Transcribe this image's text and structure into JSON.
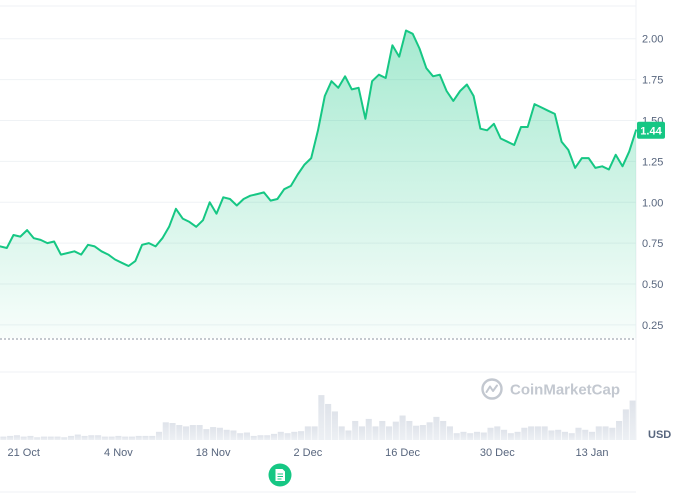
{
  "chart_data": {
    "type": "area",
    "currency": "USD",
    "watermark": "CoinMarketCap",
    "current_price_label": "1.44",
    "accent_color": "#16c784",
    "ylim": [
      0.17,
      2.2
    ],
    "y_ticks": [
      {
        "value": 0.25,
        "label": "0.25"
      },
      {
        "value": 0.5,
        "label": "0.50"
      },
      {
        "value": 0.75,
        "label": "0.75"
      },
      {
        "value": 1.0,
        "label": "1.00"
      },
      {
        "value": 1.25,
        "label": "1.25"
      },
      {
        "value": 1.5,
        "label": "1.50"
      },
      {
        "value": 1.75,
        "label": "1.75"
      },
      {
        "value": 2.0,
        "label": "2.00"
      }
    ],
    "x_ticks": [
      {
        "day": 3,
        "label": "21 Oct"
      },
      {
        "day": 17,
        "label": "4 Nov"
      },
      {
        "day": 31,
        "label": "18 Nov"
      },
      {
        "day": 45,
        "label": "2 Dec"
      },
      {
        "day": 59,
        "label": "16 Dec"
      },
      {
        "day": 73,
        "label": "30 Dec"
      },
      {
        "day": 87,
        "label": "13 Jan"
      }
    ],
    "grid": true,
    "price_series": [
      [
        -0.5,
        0.73
      ],
      [
        0.5,
        0.72
      ],
      [
        1.5,
        0.8
      ],
      [
        2.5,
        0.79
      ],
      [
        3.5,
        0.83
      ],
      [
        4.5,
        0.78
      ],
      [
        5.5,
        0.77
      ],
      [
        6.5,
        0.75
      ],
      [
        7.5,
        0.76
      ],
      [
        8.5,
        0.68
      ],
      [
        9.5,
        0.69
      ],
      [
        10.5,
        0.7
      ],
      [
        11.5,
        0.68
      ],
      [
        12.5,
        0.74
      ],
      [
        13.5,
        0.73
      ],
      [
        14.5,
        0.7
      ],
      [
        15.5,
        0.68
      ],
      [
        16.5,
        0.65
      ],
      [
        17.5,
        0.63
      ],
      [
        18.5,
        0.61
      ],
      [
        19.5,
        0.64
      ],
      [
        20.5,
        0.74
      ],
      [
        21.5,
        0.75
      ],
      [
        22.5,
        0.73
      ],
      [
        23.5,
        0.78
      ],
      [
        24.5,
        0.85
      ],
      [
        25.5,
        0.96
      ],
      [
        26.5,
        0.9
      ],
      [
        27.5,
        0.88
      ],
      [
        28.5,
        0.85
      ],
      [
        29.5,
        0.89
      ],
      [
        30.5,
        1.0
      ],
      [
        31.5,
        0.93
      ],
      [
        32.5,
        1.03
      ],
      [
        33.5,
        1.02
      ],
      [
        34.5,
        0.98
      ],
      [
        35.5,
        1.02
      ],
      [
        36.5,
        1.04
      ],
      [
        37.5,
        1.05
      ],
      [
        38.5,
        1.06
      ],
      [
        39.5,
        1.01
      ],
      [
        40.5,
        1.02
      ],
      [
        41.5,
        1.08
      ],
      [
        42.5,
        1.1
      ],
      [
        43.5,
        1.17
      ],
      [
        44.5,
        1.23
      ],
      [
        45.5,
        1.27
      ],
      [
        46.5,
        1.44
      ],
      [
        47.5,
        1.65
      ],
      [
        48.5,
        1.74
      ],
      [
        49.5,
        1.7
      ],
      [
        50.5,
        1.77
      ],
      [
        51.5,
        1.69
      ],
      [
        52.5,
        1.7
      ],
      [
        53.5,
        1.51
      ],
      [
        54.5,
        1.74
      ],
      [
        55.5,
        1.78
      ],
      [
        56.5,
        1.76
      ],
      [
        57.5,
        1.96
      ],
      [
        58.5,
        1.89
      ],
      [
        59.5,
        2.05
      ],
      [
        60.5,
        2.03
      ],
      [
        61.5,
        1.94
      ],
      [
        62.5,
        1.82
      ],
      [
        63.5,
        1.77
      ],
      [
        64.5,
        1.78
      ],
      [
        65.5,
        1.68
      ],
      [
        66.5,
        1.62
      ],
      [
        67.5,
        1.68
      ],
      [
        68.5,
        1.72
      ],
      [
        69.5,
        1.65
      ],
      [
        70.5,
        1.45
      ],
      [
        71.5,
        1.44
      ],
      [
        72.5,
        1.48
      ],
      [
        73.5,
        1.39
      ],
      [
        74.5,
        1.37
      ],
      [
        75.5,
        1.35
      ],
      [
        76.5,
        1.46
      ],
      [
        77.5,
        1.46
      ],
      [
        78.5,
        1.6
      ],
      [
        79.5,
        1.58
      ],
      [
        80.5,
        1.56
      ],
      [
        81.5,
        1.54
      ],
      [
        82.5,
        1.37
      ],
      [
        83.5,
        1.32
      ],
      [
        84.5,
        1.21
      ],
      [
        85.5,
        1.27
      ],
      [
        86.5,
        1.27
      ],
      [
        87.5,
        1.21
      ],
      [
        88.5,
        1.22
      ],
      [
        89.5,
        1.2
      ],
      [
        90.5,
        1.29
      ],
      [
        91.5,
        1.22
      ],
      [
        92.5,
        1.31
      ],
      [
        93.5,
        1.44
      ]
    ],
    "volume_series": [
      [
        0,
        0.05
      ],
      [
        1,
        0.06
      ],
      [
        2,
        0.07
      ],
      [
        3,
        0.05
      ],
      [
        4,
        0.06
      ],
      [
        5,
        0.04
      ],
      [
        6,
        0.05
      ],
      [
        7,
        0.05
      ],
      [
        8,
        0.05
      ],
      [
        9,
        0.04
      ],
      [
        10,
        0.06
      ],
      [
        11,
        0.08
      ],
      [
        12,
        0.06
      ],
      [
        13,
        0.07
      ],
      [
        14,
        0.07
      ],
      [
        15,
        0.05
      ],
      [
        16,
        0.05
      ],
      [
        17,
        0.06
      ],
      [
        18,
        0.05
      ],
      [
        19,
        0.05
      ],
      [
        20,
        0.06
      ],
      [
        21,
        0.06
      ],
      [
        22,
        0.06
      ],
      [
        23,
        0.12
      ],
      [
        24,
        0.26
      ],
      [
        25,
        0.25
      ],
      [
        26,
        0.22
      ],
      [
        27,
        0.2
      ],
      [
        28,
        0.22
      ],
      [
        29,
        0.22
      ],
      [
        30,
        0.16
      ],
      [
        31,
        0.19
      ],
      [
        32,
        0.18
      ],
      [
        33,
        0.15
      ],
      [
        34,
        0.14
      ],
      [
        35,
        0.1
      ],
      [
        36,
        0.11
      ],
      [
        37,
        0.06
      ],
      [
        38,
        0.07
      ],
      [
        39,
        0.07
      ],
      [
        40,
        0.09
      ],
      [
        41,
        0.12
      ],
      [
        42,
        0.1
      ],
      [
        43,
        0.12
      ],
      [
        44,
        0.13
      ],
      [
        45,
        0.2
      ],
      [
        46,
        0.2
      ],
      [
        47,
        0.66
      ],
      [
        48,
        0.53
      ],
      [
        49,
        0.42
      ],
      [
        50,
        0.2
      ],
      [
        51,
        0.14
      ],
      [
        52,
        0.28
      ],
      [
        53,
        0.2
      ],
      [
        54,
        0.31
      ],
      [
        55,
        0.2
      ],
      [
        56,
        0.28
      ],
      [
        57,
        0.2
      ],
      [
        58,
        0.27
      ],
      [
        59,
        0.36
      ],
      [
        60,
        0.28
      ],
      [
        61,
        0.21
      ],
      [
        62,
        0.22
      ],
      [
        63,
        0.26
      ],
      [
        64,
        0.34
      ],
      [
        65,
        0.28
      ],
      [
        66,
        0.2
      ],
      [
        67,
        0.1
      ],
      [
        68,
        0.12
      ],
      [
        69,
        0.1
      ],
      [
        70,
        0.12
      ],
      [
        71,
        0.11
      ],
      [
        72,
        0.18
      ],
      [
        73,
        0.2
      ],
      [
        74,
        0.15
      ],
      [
        75,
        0.1
      ],
      [
        76,
        0.12
      ],
      [
        77,
        0.18
      ],
      [
        78,
        0.2
      ],
      [
        79,
        0.2
      ],
      [
        80,
        0.2
      ],
      [
        81,
        0.14
      ],
      [
        82,
        0.15
      ],
      [
        83,
        0.12
      ],
      [
        84,
        0.1
      ],
      [
        85,
        0.18
      ],
      [
        86,
        0.15
      ],
      [
        87,
        0.12
      ],
      [
        88,
        0.2
      ],
      [
        89,
        0.2
      ],
      [
        90,
        0.18
      ],
      [
        91,
        0.28
      ],
      [
        92,
        0.45
      ],
      [
        93,
        0.58
      ]
    ]
  }
}
